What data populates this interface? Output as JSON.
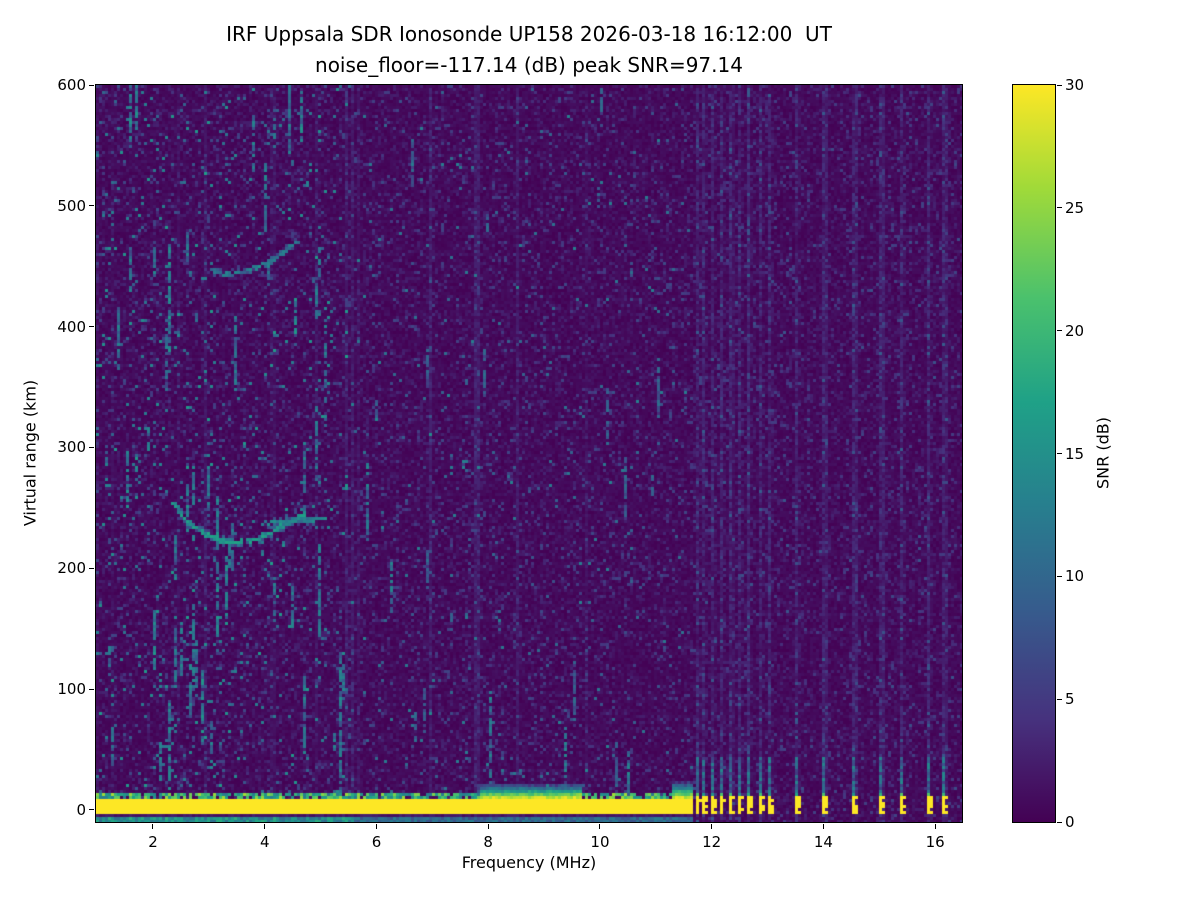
{
  "chart_data": {
    "type": "heatmap",
    "title": "IRF Uppsala SDR Ionosonde UP158 2026-03-18 16:12:00  UT",
    "subtitle": "noise_floor=-117.14 (dB) peak SNR=97.14",
    "xlabel": "Frequency (MHz)",
    "ylabel": "Virtual range (km)",
    "xlim": [
      0.98,
      16.48
    ],
    "ylim": [
      -10,
      600
    ],
    "xticks": [
      2,
      4,
      6,
      8,
      10,
      12,
      14,
      16
    ],
    "yticks": [
      0,
      100,
      200,
      300,
      400,
      500,
      600
    ],
    "colormap": "viridis",
    "colorbar": {
      "label": "SNR (dB)",
      "vmin": 0,
      "vmax": 30,
      "ticks": [
        0,
        5,
        10,
        15,
        20,
        25,
        30
      ]
    },
    "noise_floor_db": -117.14,
    "peak_snr_db": 97.14,
    "render_seed": 7,
    "features": {
      "noise": {
        "column_boost_prob": 0.07,
        "low_freq_extra_prob": 0.025
      },
      "ground_band": {
        "freq_start": 1.0,
        "freq_end": 11.62,
        "y_min": -3,
        "y_max": 10,
        "snr": 30
      },
      "band_bulges": [
        {
          "f0": 7.9,
          "f1": 9.65,
          "y_max": 22
        },
        {
          "f0": 11.3,
          "f1": 11.62,
          "y_max": 24
        }
      ],
      "band_spikes": [
        {
          "f": 5.35,
          "y_top": 130
        },
        {
          "f": 8.05,
          "y_top": 95
        },
        {
          "f": 9.4,
          "y_top": 70
        },
        {
          "f": 10.5,
          "y_top": 48
        }
      ],
      "first_hop_trace": {
        "points": [
          [
            2.35,
            255
          ],
          [
            2.6,
            240
          ],
          [
            2.9,
            229
          ],
          [
            3.2,
            223
          ],
          [
            3.5,
            221
          ],
          [
            3.85,
            224
          ],
          [
            4.2,
            231
          ],
          [
            4.5,
            240
          ],
          [
            4.75,
            246
          ]
        ],
        "snr": 14,
        "skip": 0.12
      },
      "branch_trace": {
        "points": [
          [
            3.95,
            237
          ],
          [
            4.35,
            239
          ],
          [
            4.75,
            240
          ],
          [
            5.1,
            242
          ]
        ],
        "snr": 12,
        "skip": 0.25
      },
      "second_hop_trace": {
        "points": [
          [
            3.05,
            447
          ],
          [
            3.35,
            443
          ],
          [
            3.7,
            446
          ],
          [
            4.05,
            453
          ],
          [
            4.35,
            462
          ],
          [
            4.6,
            471
          ]
        ],
        "snr": 11,
        "skip": 0.3
      },
      "interference_freqs": [
        11.72,
        11.87,
        12.02,
        12.17,
        12.32,
        12.5,
        12.68,
        12.86,
        13.04,
        13.52,
        14.02,
        14.52,
        15.0,
        15.42,
        15.9,
        16.15
      ],
      "tall_streaks": [
        {
          "f": 1.62,
          "y0": 555,
          "y1": 600
        },
        {
          "f": 1.72,
          "y0": 565,
          "y1": 600
        },
        {
          "f": 2.32,
          "y0": 380,
          "y1": 470
        },
        {
          "f": 3.15,
          "y0": 145,
          "y1": 265
        },
        {
          "f": 2.9,
          "y0": 55,
          "y1": 115
        },
        {
          "f": 3.3,
          "y0": 155,
          "y1": 210
        },
        {
          "f": 1.55,
          "y0": 255,
          "y1": 300
        },
        {
          "f": 4.55,
          "y0": 395,
          "y1": 425
        },
        {
          "f": 2.05,
          "y0": 120,
          "y1": 165
        }
      ],
      "random_streaks": [
        {
          "count": 45,
          "freq_range": [
            1.0,
            6.5
          ],
          "len_range": [
            15,
            80
          ],
          "snr_range": [
            7,
            14
          ]
        },
        {
          "count": 18,
          "freq_range": [
            6.5,
            11.6
          ],
          "len_range": [
            10,
            50
          ],
          "snr_range": [
            6,
            11
          ]
        }
      ]
    }
  }
}
